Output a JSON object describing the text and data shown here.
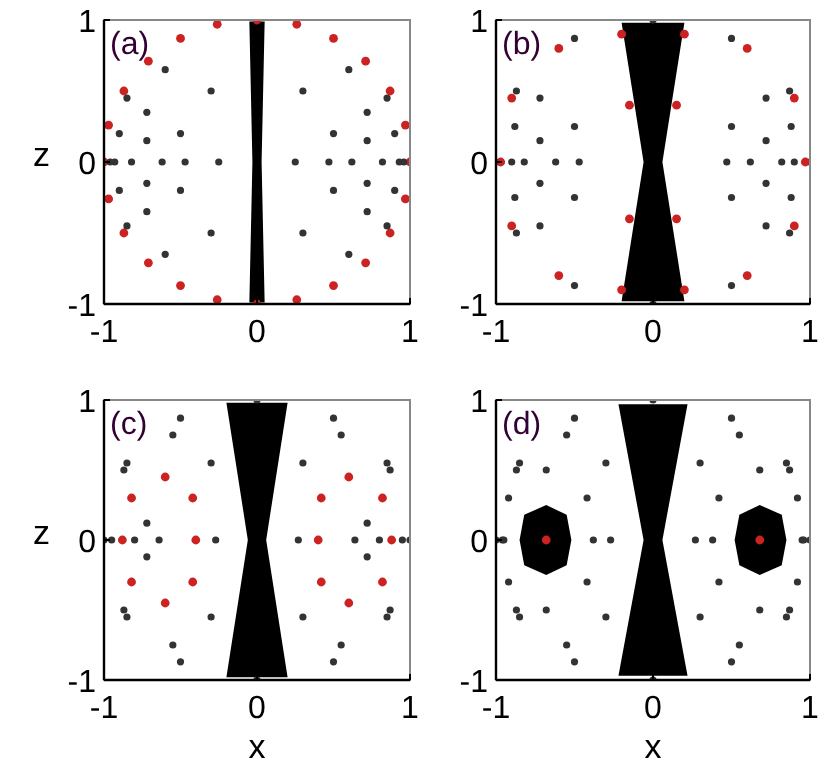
{
  "chart_data": [
    {
      "type": "scatter",
      "annotations": [
        "(a)"
      ],
      "ylabel": "z",
      "xlim": [
        -1,
        1
      ],
      "ylim": [
        -1,
        1
      ],
      "xticks": [
        -1,
        0,
        1
      ],
      "yticks": [
        -1,
        0,
        1
      ],
      "marker": "circle",
      "series": [
        {
          "type": "area",
          "marker": "none",
          "color": "#000000",
          "x": [
            -0.05,
            0.05,
            0.03,
            0.05,
            -0.05,
            -0.03
          ],
          "values": [
            0.99,
            0.99,
            0,
            -0.99,
            -0.99,
            0
          ]
        },
        {
          "color": "#cc2222",
          "x": [
            0,
            0.26,
            0.5,
            0.71,
            0.87,
            0.97,
            1,
            0.97,
            0.87,
            0.71,
            0.5,
            0.26,
            0,
            -0.26,
            -0.5,
            -0.71,
            -0.87,
            -0.97,
            -1,
            -0.97,
            -0.87,
            -0.71,
            -0.5,
            -0.26
          ],
          "values": [
            1,
            0.97,
            0.87,
            0.71,
            0.5,
            0.26,
            0,
            -0.26,
            -0.5,
            -0.71,
            -0.87,
            -0.97,
            -1,
            -0.97,
            -0.87,
            -0.71,
            -0.5,
            -0.26,
            0,
            0.26,
            0.5,
            0.71,
            0.87,
            0.97
          ]
        },
        {
          "color": "#333333",
          "x": [
            0.72,
            0.82,
            0.72,
            0.62
          ],
          "values": [
            0.15,
            0,
            -0.15,
            0
          ]
        },
        {
          "color": "#333333",
          "x": [
            0.72,
            0.9,
            0.93,
            0.9,
            0.72,
            0.5,
            0.47,
            0.5
          ],
          "values": [
            0.35,
            0.2,
            0,
            -0.2,
            -0.35,
            -0.2,
            0,
            0.2
          ]
        },
        {
          "color": "#333333",
          "x": [
            0.6,
            0.85,
            0.96,
            0.85,
            0.6,
            0.3,
            0.25,
            0.3
          ],
          "values": [
            0.65,
            0.45,
            0,
            -0.45,
            -0.65,
            -0.5,
            0,
            0.5
          ]
        },
        {
          "color": "#333333",
          "x": [
            -0.72,
            -0.82,
            -0.72,
            -0.62
          ],
          "values": [
            0.15,
            0,
            -0.15,
            0
          ]
        },
        {
          "color": "#333333",
          "x": [
            -0.72,
            -0.9,
            -0.93,
            -0.9,
            -0.72,
            -0.5,
            -0.47,
            -0.5
          ],
          "values": [
            0.35,
            0.2,
            0,
            -0.2,
            -0.35,
            -0.2,
            0,
            0.2
          ]
        },
        {
          "color": "#333333",
          "x": [
            -0.6,
            -0.85,
            -0.96,
            -0.85,
            -0.6,
            -0.3,
            -0.25,
            -0.3
          ],
          "values": [
            0.65,
            0.45,
            0,
            -0.45,
            -0.65,
            -0.5,
            0,
            0.5
          ]
        }
      ]
    },
    {
      "type": "scatter",
      "annotations": [
        "(b)"
      ],
      "xlim": [
        -1,
        1
      ],
      "ylim": [
        -1,
        1
      ],
      "xticks": [
        -1,
        0,
        1
      ],
      "yticks": [
        -1,
        0,
        1
      ],
      "marker": "circle",
      "series": [
        {
          "type": "area",
          "marker": "none",
          "color": "#000000",
          "x": [
            -0.2,
            0.2,
            0.06,
            0.2,
            -0.2,
            -0.06
          ],
          "values": [
            0.98,
            0.98,
            0,
            -0.98,
            -0.98,
            0
          ]
        },
        {
          "color": "#333333",
          "x": [
            0,
            0.5,
            0.87,
            1,
            0.87,
            0.5,
            0,
            -0.5,
            -0.87,
            -1,
            -0.87,
            -0.5
          ],
          "values": [
            1,
            0.87,
            0.5,
            0,
            -0.5,
            -0.87,
            -1,
            -0.87,
            -0.5,
            0,
            0.5,
            0.87
          ]
        },
        {
          "color": "#cc2222",
          "x": [
            0.2,
            0.6,
            0.9,
            0.97,
            0.9,
            0.6,
            0.2,
            0.15,
            0.15
          ],
          "values": [
            0.9,
            0.8,
            0.45,
            0,
            -0.45,
            -0.8,
            -0.9,
            -0.4,
            0.4
          ]
        },
        {
          "color": "#cc2222",
          "x": [
            -0.2,
            -0.6,
            -0.9,
            -0.97,
            -0.9,
            -0.6,
            -0.2,
            -0.15,
            -0.15
          ],
          "values": [
            0.9,
            0.8,
            0.45,
            0,
            -0.45,
            -0.8,
            -0.9,
            -0.4,
            0.4
          ]
        },
        {
          "color": "#333333",
          "x": [
            0.72,
            0.82,
            0.72,
            0.62
          ],
          "values": [
            0.15,
            0,
            -0.15,
            0
          ]
        },
        {
          "color": "#333333",
          "x": [
            0.72,
            0.88,
            0.9,
            0.88,
            0.72,
            0.5,
            0.47,
            0.5
          ],
          "values": [
            0.45,
            0.25,
            0,
            -0.25,
            -0.45,
            -0.25,
            0,
            0.25
          ]
        },
        {
          "color": "#333333",
          "x": [
            -0.72,
            -0.82,
            -0.72,
            -0.62
          ],
          "values": [
            0.15,
            0,
            -0.15,
            0
          ]
        },
        {
          "color": "#333333",
          "x": [
            -0.72,
            -0.88,
            -0.9,
            -0.88,
            -0.72,
            -0.5,
            -0.47,
            -0.5
          ],
          "values": [
            0.45,
            0.25,
            0,
            -0.25,
            -0.45,
            -0.25,
            0,
            0.25
          ]
        }
      ]
    },
    {
      "type": "scatter",
      "annotations": [
        "(c)"
      ],
      "xlabel": "x",
      "ylabel": "z",
      "xlim": [
        -1,
        1
      ],
      "ylim": [
        -1,
        1
      ],
      "xticks": [
        -1,
        0,
        1
      ],
      "yticks": [
        -1,
        0,
        1
      ],
      "marker": "circle",
      "series": [
        {
          "type": "area",
          "marker": "none",
          "color": "#000000",
          "x": [
            -0.2,
            0.2,
            0.06,
            0.2,
            -0.2,
            -0.06
          ],
          "values": [
            0.98,
            0.98,
            0,
            -0.98,
            -0.98,
            0
          ]
        },
        {
          "color": "#333333",
          "x": [
            0,
            0.5,
            0.87,
            1,
            0.87,
            0.5,
            0,
            -0.5,
            -0.87,
            -1,
            -0.87,
            -0.5
          ],
          "values": [
            1,
            0.87,
            0.5,
            0,
            -0.5,
            -0.87,
            -1,
            -0.87,
            -0.5,
            0,
            0.5,
            0.87
          ]
        },
        {
          "color": "#cc2222",
          "x": [
            0.6,
            0.82,
            0.88,
            0.82,
            0.6,
            0.42,
            0.4,
            0.42
          ],
          "values": [
            0.45,
            0.3,
            0,
            -0.3,
            -0.45,
            -0.3,
            0,
            0.3
          ]
        },
        {
          "color": "#cc2222",
          "x": [
            -0.6,
            -0.82,
            -0.88,
            -0.82,
            -0.6,
            -0.42,
            -0.4,
            -0.42
          ],
          "values": [
            0.45,
            0.3,
            0,
            -0.3,
            -0.45,
            -0.3,
            0,
            0.3
          ]
        },
        {
          "color": "#333333",
          "x": [
            0.72,
            0.8,
            0.72,
            0.64
          ],
          "values": [
            0.12,
            0,
            -0.12,
            0
          ]
        },
        {
          "color": "#333333",
          "x": [
            0.55,
            0.85,
            0.95,
            0.85,
            0.55,
            0.3,
            0.27,
            0.3
          ],
          "values": [
            0.75,
            0.55,
            0,
            -0.55,
            -0.75,
            -0.55,
            0,
            0.55
          ]
        },
        {
          "color": "#333333",
          "x": [
            -0.72,
            -0.8,
            -0.72,
            -0.64
          ],
          "values": [
            0.12,
            0,
            -0.12,
            0
          ]
        },
        {
          "color": "#333333",
          "x": [
            -0.55,
            -0.85,
            -0.95,
            -0.85,
            -0.55,
            -0.3,
            -0.27,
            -0.3
          ],
          "values": [
            0.75,
            0.55,
            0,
            -0.55,
            -0.75,
            -0.55,
            0,
            0.55
          ]
        }
      ]
    },
    {
      "type": "scatter",
      "annotations": [
        "(d)"
      ],
      "xlabel": "x",
      "xlim": [
        -1,
        1
      ],
      "ylim": [
        -1,
        1
      ],
      "xticks": [
        -1,
        0,
        1
      ],
      "yticks": [
        -1,
        0,
        1
      ],
      "marker": "circle",
      "series": [
        {
          "type": "area",
          "marker": "none",
          "color": "#000000",
          "x": [
            -0.22,
            0.22,
            0.06,
            0.22,
            -0.22,
            -0.06
          ],
          "values": [
            0.97,
            0.97,
            0,
            -0.97,
            -0.97,
            0
          ]
        },
        {
          "color": "#333333",
          "x": [
            0,
            0.5,
            0.87,
            1,
            0.87,
            0.5,
            0,
            -0.5,
            -0.87,
            -1,
            -0.87,
            -0.5
          ],
          "values": [
            1,
            0.87,
            0.5,
            0,
            -0.5,
            -0.87,
            -1,
            -0.87,
            -0.5,
            0,
            0.5,
            0.87
          ]
        },
        {
          "type": "area",
          "marker": "none",
          "color": "#000000",
          "x": [
            0.68,
            0.82,
            0.85,
            0.82,
            0.68,
            0.55,
            0.52,
            0.55
          ],
          "values": [
            0.25,
            0.18,
            0,
            -0.18,
            -0.25,
            -0.18,
            0,
            0.18
          ]
        },
        {
          "type": "area",
          "marker": "none",
          "color": "#000000",
          "x": [
            -0.68,
            -0.82,
            -0.85,
            -0.82,
            -0.68,
            -0.55,
            -0.52,
            -0.55
          ],
          "values": [
            0.25,
            0.18,
            0,
            -0.18,
            -0.25,
            -0.18,
            0,
            0.18
          ]
        },
        {
          "color": "#cc2222",
          "x": [
            -0.68,
            0.68
          ],
          "values": [
            0,
            0
          ]
        },
        {
          "color": "#333333",
          "x": [
            0.68,
            0.92,
            0.95,
            0.92,
            0.68,
            0.42,
            0.38,
            0.42
          ],
          "values": [
            0.5,
            0.3,
            0,
            -0.3,
            -0.5,
            -0.3,
            0,
            0.3
          ]
        },
        {
          "color": "#333333",
          "x": [
            0.55,
            0.85,
            0.96,
            0.85,
            0.55,
            0.3,
            0.27,
            0.3
          ],
          "values": [
            0.75,
            0.55,
            0,
            -0.55,
            -0.75,
            -0.55,
            0,
            0.55
          ]
        },
        {
          "color": "#333333",
          "x": [
            -0.68,
            -0.92,
            -0.95,
            -0.92,
            -0.68,
            -0.42,
            -0.38,
            -0.42
          ],
          "values": [
            0.5,
            0.3,
            0,
            -0.3,
            -0.5,
            -0.3,
            0,
            0.3
          ]
        },
        {
          "color": "#333333",
          "x": [
            -0.55,
            -0.85,
            -0.96,
            -0.85,
            -0.55,
            -0.3,
            -0.27,
            -0.3
          ],
          "values": [
            0.75,
            0.55,
            0,
            -0.55,
            -0.75,
            -0.55,
            0,
            0.55
          ]
        }
      ]
    }
  ]
}
